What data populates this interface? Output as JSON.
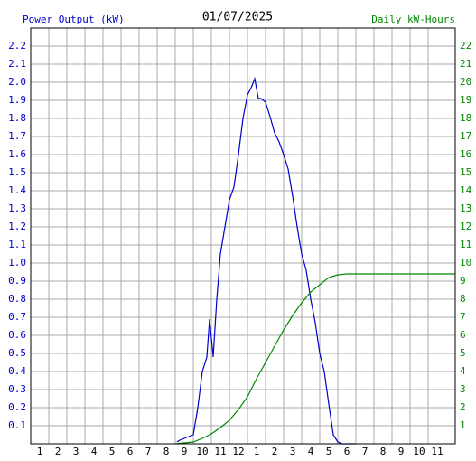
{
  "chart_data": {
    "type": "line",
    "title": "01/07/2025",
    "y_label": "Power Output (kW)",
    "y2_label": "Daily kW-Hours",
    "xlim": [
      0.5,
      24
    ],
    "xticks": [
      1,
      2,
      3,
      4,
      5,
      6,
      7,
      8,
      9,
      10,
      11,
      12,
      {
        "value": 13,
        "label": "1"
      },
      {
        "value": 14,
        "label": "2"
      },
      {
        "value": 15,
        "label": "3"
      },
      {
        "value": 16,
        "label": "4"
      },
      {
        "value": 17,
        "label": "5"
      },
      {
        "value": 18,
        "label": "6"
      },
      {
        "value": 19,
        "label": "7"
      },
      {
        "value": 20,
        "label": "8"
      },
      {
        "value": 21,
        "label": "9"
      },
      {
        "value": 22,
        "label": "10"
      },
      {
        "value": 23,
        "label": "11"
      }
    ],
    "ylim": [
      0,
      2.3
    ],
    "yticks": [
      0.1,
      0.2,
      0.3,
      0.4,
      0.5,
      0.6,
      0.7,
      0.8,
      0.9,
      {
        "value": 1.0,
        "label": "1.0"
      },
      1.1,
      1.2,
      1.3,
      1.4,
      1.5,
      1.6,
      1.7,
      1.8,
      1.9,
      {
        "value": 2.0,
        "label": "2.0"
      },
      2.1,
      2.2
    ],
    "y2lim": [
      0,
      23
    ],
    "y2ticks": [
      1,
      2,
      3,
      4,
      5,
      6,
      7,
      8,
      9,
      10,
      11,
      12,
      13,
      14,
      15,
      16,
      17,
      18,
      19,
      20,
      21,
      22
    ],
    "grid": true,
    "series": [
      {
        "color": "#0000cc",
        "axis": "y",
        "x": [
          8.6,
          8.75,
          9.0,
          9.25,
          9.5,
          9.75,
          10.0,
          10.25,
          10.4,
          10.6,
          10.8,
          11.0,
          11.25,
          11.5,
          11.75,
          12.0,
          12.25,
          12.5,
          12.75,
          12.9,
          13.1,
          13.25,
          13.5,
          13.75,
          14.0,
          14.25,
          14.5,
          14.75,
          15.0,
          15.25,
          15.5,
          15.75,
          16.0,
          16.25,
          16.5,
          16.75,
          17.0,
          17.25,
          17.5,
          17.75,
          18.5
        ],
        "values": [
          0.01,
          0.02,
          0.03,
          0.04,
          0.05,
          0.2,
          0.4,
          0.48,
          0.69,
          0.48,
          0.8,
          1.05,
          1.2,
          1.35,
          1.42,
          1.6,
          1.8,
          1.93,
          1.98,
          2.02,
          1.91,
          1.91,
          1.89,
          1.81,
          1.72,
          1.67,
          1.6,
          1.52,
          1.37,
          1.2,
          1.05,
          0.96,
          0.8,
          0.67,
          0.5,
          0.4,
          0.22,
          0.05,
          0.01,
          0.0,
          0.0
        ]
      },
      {
        "color": "#008800",
        "axis": "y2",
        "x": [
          8.5,
          9,
          9.5,
          10,
          10.5,
          11,
          11.5,
          12,
          12.5,
          13,
          13.5,
          14,
          14.5,
          15,
          15.5,
          16,
          16.5,
          17,
          17.5,
          18,
          24
        ],
        "values": [
          0,
          0.05,
          0.1,
          0.3,
          0.55,
          0.9,
          1.3,
          1.9,
          2.6,
          3.6,
          4.5,
          5.4,
          6.3,
          7.1,
          7.8,
          8.4,
          8.8,
          9.2,
          9.35,
          9.4,
          9.4
        ]
      }
    ]
  }
}
